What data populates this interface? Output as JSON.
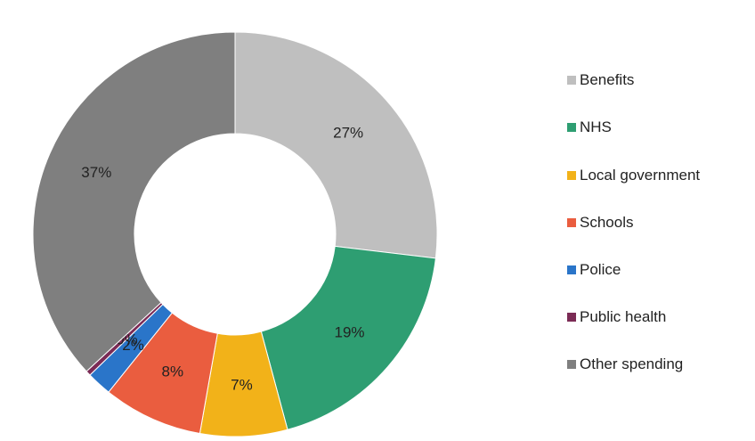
{
  "chart_data": {
    "type": "pie",
    "variant": "donut",
    "title": "",
    "legend_position": "right",
    "series": [
      {
        "name": "Benefits",
        "value": 27,
        "label": "27%",
        "color": "#bfbfbf"
      },
      {
        "name": "NHS",
        "value": 19,
        "label": "19%",
        "color": "#2e9e72"
      },
      {
        "name": "Local government",
        "value": 7,
        "label": "7%",
        "color": "#f2b219"
      },
      {
        "name": "Schools",
        "value": 8,
        "label": "8%",
        "color": "#ea5d3f"
      },
      {
        "name": "Police",
        "value": 2,
        "label": "2%",
        "color": "#2a75c9"
      },
      {
        "name": "Public health",
        "value": 0.4,
        "label": "0%",
        "color": "#7b2b55"
      },
      {
        "name": "Other spending",
        "value": 37,
        "label": "37%",
        "color": "#7f7f7f"
      }
    ]
  }
}
